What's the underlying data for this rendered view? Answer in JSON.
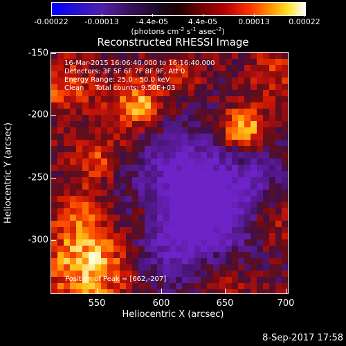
{
  "colorbar": {
    "ticks": [
      "-0.00022",
      "-0.00013",
      "-4.4e-05",
      "4.4e-05",
      "0.00013",
      "0.00022"
    ],
    "units_prefix": "(photons cm",
    "units_exp1": "-2",
    "units_mid1": " s",
    "units_exp2": "-1",
    "units_mid2": " asec",
    "units_exp3": "-2",
    "units_suffix": ")"
  },
  "title": "Reconstructed RHESSI Image",
  "annotations": {
    "line1": "16-Mar-2015 16:06:40.000 to 16:16:40.000",
    "line2": "Detectors: 3F 5F 6F 7F 8F 9F, Att 0",
    "line3": "Energy Range: 25.0 - 50.0 keV",
    "line4": "Clean     Total counts: 9.50E+03",
    "peak": "Position of Peak = [662,-207]"
  },
  "axes": {
    "xlabel": "Heliocentric X (arcsec)",
    "ylabel": "Heliocentric Y (arcsec)",
    "xticks": [
      "550",
      "600",
      "650",
      "700"
    ],
    "yticks": [
      "-150",
      "-200",
      "-250",
      "-300"
    ],
    "x_range": [
      515,
      707
    ],
    "y_range": [
      -343,
      -146
    ]
  },
  "timestamp": "8-Sep-2017 17:58"
}
